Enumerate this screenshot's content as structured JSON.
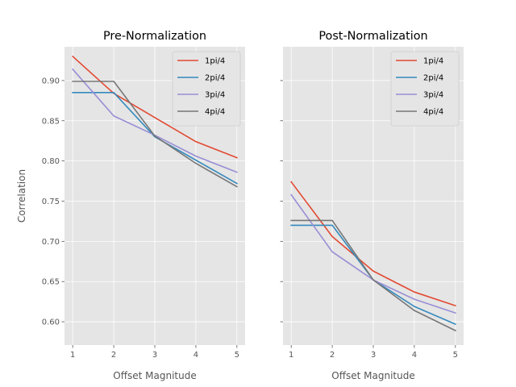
{
  "chart_data": [
    {
      "type": "line",
      "title": "Pre-Normalization",
      "xlabel": "Offset Magnitude",
      "ylabel": "Correlation",
      "x": [
        1,
        2,
        3,
        4,
        5
      ],
      "xticks": [
        "1",
        "2",
        "3",
        "4",
        "5"
      ],
      "xlim": [
        0.8,
        5.2
      ],
      "ylim": [
        0.571,
        0.942
      ],
      "yticks": [
        "0.60",
        "0.65",
        "0.70",
        "0.75",
        "0.80",
        "0.85",
        "0.90"
      ],
      "show_yticklabels": true,
      "grid": true,
      "legend_position": "upper right",
      "series": [
        {
          "name": "1pi/4",
          "color": "#e24a33",
          "values": [
            0.93,
            0.884,
            0.854,
            0.824,
            0.804
          ]
        },
        {
          "name": "2pi/4",
          "color": "#348abd",
          "values": [
            0.885,
            0.885,
            0.83,
            0.801,
            0.772
          ]
        },
        {
          "name": "3pi/4",
          "color": "#988ed5",
          "values": [
            0.914,
            0.856,
            0.832,
            0.806,
            0.786
          ]
        },
        {
          "name": "4pi/4",
          "color": "#777777",
          "values": [
            0.899,
            0.899,
            0.831,
            0.797,
            0.768
          ]
        }
      ]
    },
    {
      "type": "line",
      "title": "Post-Normalization",
      "xlabel": "Offset Magnitude",
      "ylabel": "",
      "x": [
        1,
        2,
        3,
        4,
        5
      ],
      "xticks": [
        "1",
        "2",
        "3",
        "4",
        "5"
      ],
      "xlim": [
        0.8,
        5.2
      ],
      "ylim": [
        0.571,
        0.942
      ],
      "yticks": [
        "0.60",
        "0.65",
        "0.70",
        "0.75",
        "0.80",
        "0.85",
        "0.90"
      ],
      "show_yticklabels": false,
      "grid": true,
      "legend_position": "upper right",
      "series": [
        {
          "name": "1pi/4",
          "color": "#e24a33",
          "values": [
            0.774,
            0.706,
            0.663,
            0.637,
            0.62
          ]
        },
        {
          "name": "2pi/4",
          "color": "#348abd",
          "values": [
            0.72,
            0.72,
            0.652,
            0.619,
            0.597
          ]
        },
        {
          "name": "3pi/4",
          "color": "#988ed5",
          "values": [
            0.758,
            0.687,
            0.652,
            0.628,
            0.611
          ]
        },
        {
          "name": "4pi/4",
          "color": "#777777",
          "values": [
            0.726,
            0.726,
            0.652,
            0.614,
            0.589
          ]
        }
      ]
    }
  ]
}
